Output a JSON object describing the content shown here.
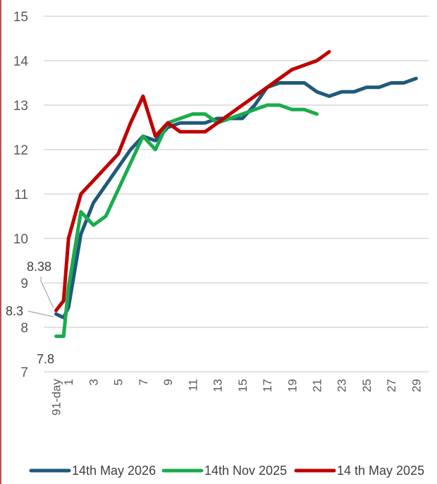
{
  "chart_data": {
    "type": "line",
    "title": "",
    "xlabel": "",
    "ylabel": "",
    "ylim": [
      7,
      15
    ],
    "yticks": [
      7,
      8,
      9,
      10,
      11,
      12,
      13,
      14,
      15
    ],
    "x_index_range": [
      -1,
      30
    ],
    "xticks": [
      {
        "label": "91-day",
        "x": 0
      },
      {
        "label": "1",
        "x": 1
      },
      {
        "label": "3",
        "x": 3
      },
      {
        "label": "5",
        "x": 5
      },
      {
        "label": "7",
        "x": 7
      },
      {
        "label": "9",
        "x": 9
      },
      {
        "label": "11",
        "x": 11
      },
      {
        "label": "13",
        "x": 13
      },
      {
        "label": "15",
        "x": 15
      },
      {
        "label": "17",
        "x": 17
      },
      {
        "label": "19",
        "x": 19
      },
      {
        "label": "21",
        "x": 21
      },
      {
        "label": "23",
        "x": 23
      },
      {
        "label": "25",
        "x": 25
      },
      {
        "label": "27",
        "x": 27
      },
      {
        "label": "29",
        "x": 29
      }
    ],
    "grid": true,
    "legend_position": "bottom",
    "series": [
      {
        "name": "14th May 2026",
        "color": "#1f5a7a",
        "x": [
          0,
          0.6,
          1,
          2,
          3,
          4,
          5,
          6,
          7,
          8,
          9,
          10,
          11,
          12,
          13,
          14,
          15,
          16,
          17,
          18,
          19,
          20,
          21,
          22,
          23,
          24,
          25,
          26,
          27,
          28,
          29
        ],
        "y": [
          8.3,
          8.22,
          8.45,
          10.1,
          10.8,
          11.2,
          11.6,
          12.0,
          12.3,
          12.2,
          12.5,
          12.6,
          12.6,
          12.6,
          12.7,
          12.7,
          12.7,
          13.0,
          13.4,
          13.5,
          13.5,
          13.5,
          13.3,
          13.2,
          13.3,
          13.3,
          13.4,
          13.4,
          13.5,
          13.5,
          13.6
        ]
      },
      {
        "name": "14th Nov 2025",
        "color": "#1aac4c",
        "x": [
          0,
          0.6,
          1,
          2,
          3,
          4,
          5,
          6,
          7,
          8,
          9,
          10,
          11,
          12,
          13,
          14,
          15,
          16,
          17,
          18,
          19,
          20,
          21
        ],
        "y": [
          7.8,
          7.8,
          8.9,
          10.6,
          10.3,
          10.5,
          11.1,
          11.7,
          12.3,
          12.0,
          12.6,
          12.7,
          12.8,
          12.8,
          12.6,
          12.7,
          12.8,
          12.9,
          13.0,
          13.0,
          12.9,
          12.9,
          12.8
        ]
      },
      {
        "name": "14 th May 2025",
        "color": "#c00000",
        "x": [
          0,
          0.6,
          1,
          2,
          3,
          4,
          5,
          6,
          7,
          8,
          9,
          10,
          11,
          12,
          13,
          14,
          15,
          16,
          17,
          18,
          19,
          20,
          21,
          22
        ],
        "y": [
          8.38,
          8.6,
          10.0,
          11.0,
          11.3,
          11.6,
          11.9,
          12.6,
          13.2,
          12.3,
          12.6,
          12.4,
          12.4,
          12.4,
          12.6,
          12.8,
          13.0,
          13.2,
          13.4,
          13.6,
          13.8,
          13.9,
          14.0,
          14.2
        ]
      }
    ],
    "annotations": [
      {
        "text": "8.38",
        "x": 0,
        "y": 8.38
      },
      {
        "text": "8.3",
        "x": 0,
        "y": 8.3
      },
      {
        "text": "7.8",
        "x": 0,
        "y": 7.8
      }
    ]
  }
}
